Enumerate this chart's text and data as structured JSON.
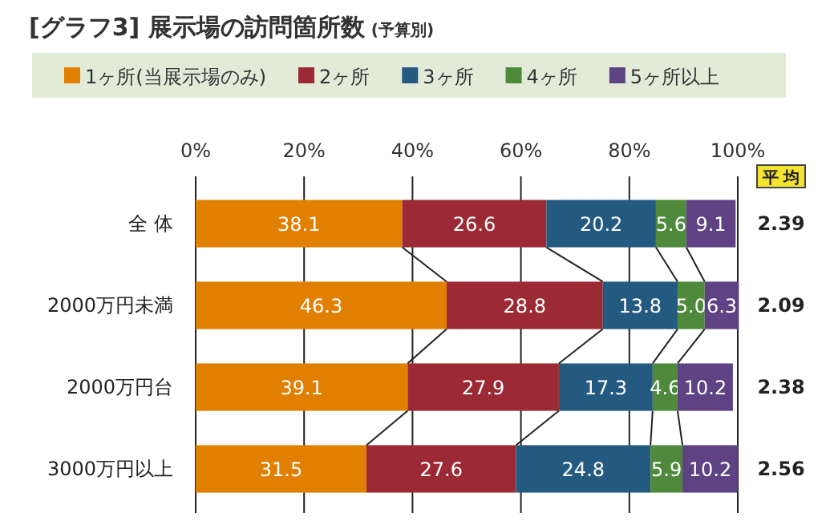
{
  "chart_data": {
    "type": "bar",
    "orientation": "horizontal",
    "stacked": true,
    "title": "[グラフ3] 展示場の訪問箇所数",
    "subtitle": "(予算別)",
    "categories": [
      "全 体",
      "2000万円未満",
      "2000万円台",
      "3000万円以上"
    ],
    "series": [
      {
        "name": "1ヶ所(当展示場のみ)",
        "color": "#e07f00",
        "values": [
          38.1,
          46.3,
          39.1,
          31.5
        ]
      },
      {
        "name": "2ヶ所",
        "color": "#9b2a35",
        "values": [
          26.6,
          28.8,
          27.9,
          27.6
        ]
      },
      {
        "name": "3ヶ所",
        "color": "#255a80",
        "values": [
          20.2,
          13.8,
          17.3,
          24.8
        ]
      },
      {
        "name": "4ヶ所",
        "color": "#4f8a3c",
        "values": [
          5.6,
          5.0,
          4.6,
          5.9
        ],
        "value_labels": [
          "5.6",
          "5.0",
          "4.6",
          "5.9"
        ]
      },
      {
        "name": "5ヶ所以上",
        "color": "#5e4283",
        "values": [
          9.1,
          6.3,
          10.2,
          10.2
        ]
      }
    ],
    "xlim": [
      0,
      100
    ],
    "xticks": [
      {
        "value": 0,
        "label": "0%"
      },
      {
        "value": 20,
        "label": "20%"
      },
      {
        "value": 40,
        "label": "40%"
      },
      {
        "value": 60,
        "label": "60%"
      },
      {
        "value": 80,
        "label": "80%"
      },
      {
        "value": 100,
        "label": "100%"
      }
    ],
    "grid": "x",
    "legend": "top",
    "data_labels": true,
    "annotations": [
      "平 均",
      "2.39",
      "2.09",
      "2.38",
      "2.56"
    ]
  }
}
